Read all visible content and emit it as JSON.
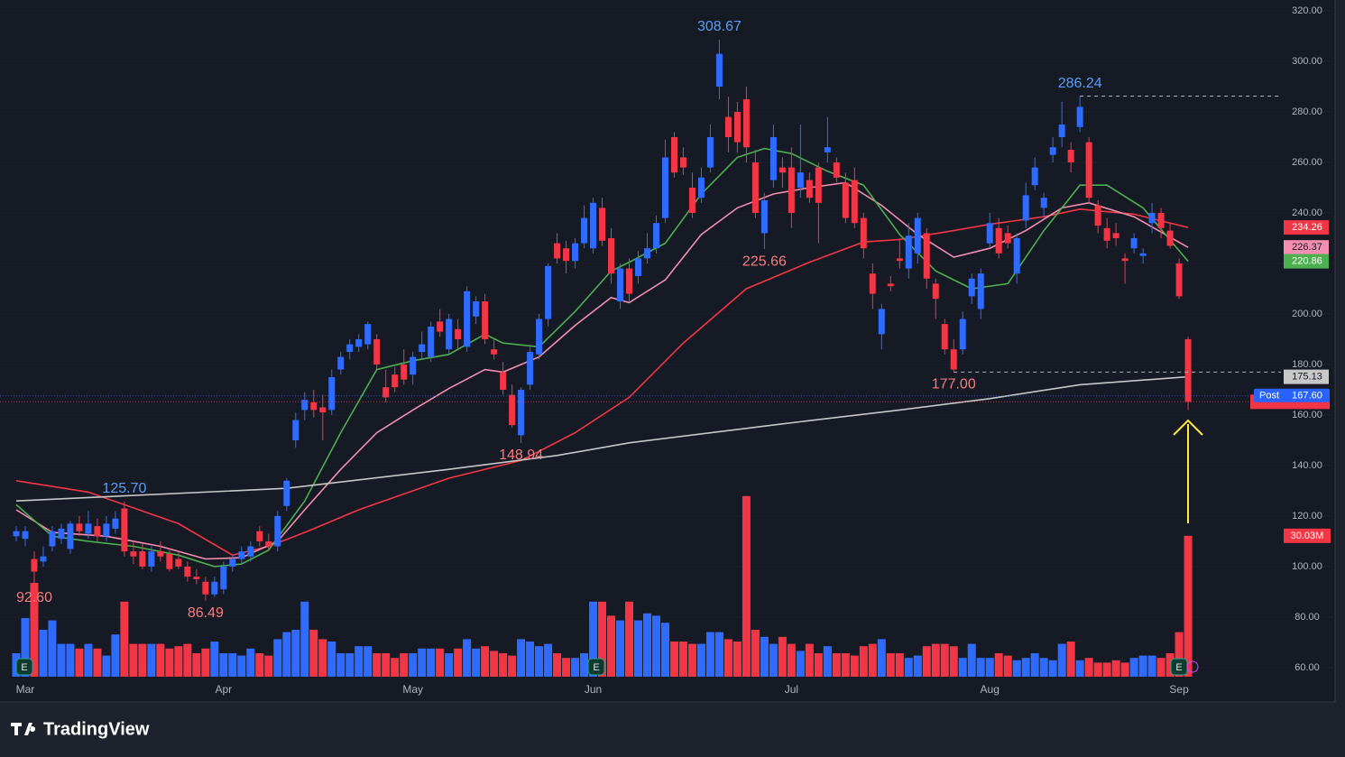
{
  "chart_data": {
    "type": "candlestick",
    "brand": "TradingView",
    "earnings_label": "E",
    "ylim": [
      46.4,
      324.3
    ],
    "xlim": [
      -1.8,
      140.3
    ],
    "grid": true,
    "up_color": "#2f6bff",
    "down_color": "#f23645",
    "yticks": [
      {
        "value": 60,
        "label": "60.00"
      },
      {
        "value": 80,
        "label": "80.00"
      },
      {
        "value": 100,
        "label": "100.00"
      },
      {
        "value": 120,
        "label": "120.00"
      },
      {
        "value": 140,
        "label": "140.00"
      },
      {
        "value": 160,
        "label": "160.00"
      },
      {
        "value": 180,
        "label": "180.00"
      },
      {
        "value": 200,
        "label": "200.00"
      },
      {
        "value": 220,
        "label": "220.00"
      },
      {
        "value": 240,
        "label": "240.00"
      },
      {
        "value": 260,
        "label": "260.00"
      },
      {
        "value": 280,
        "label": "280.00"
      },
      {
        "value": 300,
        "label": "300.00"
      },
      {
        "value": 320,
        "label": "320.00"
      }
    ],
    "categories": [
      null,
      "Mar",
      null,
      null,
      null,
      null,
      null,
      null,
      null,
      null,
      null,
      null,
      null,
      null,
      null,
      null,
      null,
      null,
      null,
      null,
      null,
      null,
      null,
      "Apr",
      null,
      null,
      null,
      null,
      null,
      null,
      null,
      null,
      null,
      null,
      null,
      null,
      null,
      null,
      null,
      null,
      null,
      null,
      null,
      null,
      "May",
      null,
      null,
      null,
      null,
      null,
      null,
      null,
      null,
      null,
      null,
      null,
      null,
      null,
      null,
      null,
      null,
      null,
      null,
      null,
      "Jun",
      null,
      null,
      null,
      null,
      null,
      null,
      null,
      null,
      null,
      null,
      null,
      null,
      null,
      null,
      null,
      null,
      null,
      null,
      null,
      null,
      null,
      "Jul",
      null,
      null,
      null,
      null,
      null,
      null,
      null,
      null,
      null,
      null,
      null,
      null,
      null,
      null,
      null,
      null,
      null,
      null,
      null,
      null,
      null,
      "Aug",
      null,
      null,
      null,
      null,
      null,
      null,
      null,
      null,
      null,
      null,
      null,
      null,
      null,
      null,
      null,
      null,
      null,
      null,
      null,
      null,
      "Sep",
      null
    ],
    "candles": [
      [
        112,
        116,
        110,
        114
      ],
      [
        111,
        116,
        108,
        114
      ],
      [
        103,
        106,
        92.6,
        98
      ],
      [
        102,
        108,
        100,
        104
      ],
      [
        108,
        116,
        106,
        114
      ],
      [
        111,
        117,
        109,
        115
      ],
      [
        107,
        118,
        105,
        117
      ],
      [
        117,
        120,
        112,
        114
      ],
      [
        113,
        122,
        111,
        117
      ],
      [
        116,
        119,
        110,
        112
      ],
      [
        112,
        120,
        110,
        117
      ],
      [
        115,
        122,
        113,
        119
      ],
      [
        123,
        125.7,
        104,
        106
      ],
      [
        106,
        110,
        101,
        104
      ],
      [
        106,
        109,
        99,
        100
      ],
      [
        100,
        108,
        98,
        106
      ],
      [
        106,
        110,
        102,
        104
      ],
      [
        105,
        107,
        98,
        99
      ],
      [
        103,
        106,
        99,
        100
      ],
      [
        100,
        102,
        94,
        96
      ],
      [
        96,
        99,
        93,
        95
      ],
      [
        94,
        96,
        86.49,
        89
      ],
      [
        89,
        96,
        88,
        94
      ],
      [
        91,
        102,
        89,
        100
      ],
      [
        100,
        105,
        98,
        103
      ],
      [
        103,
        108,
        101,
        106
      ],
      [
        104,
        110,
        102,
        108
      ],
      [
        114,
        116,
        108,
        110
      ],
      [
        110,
        113,
        106,
        108
      ],
      [
        108,
        122,
        106,
        120
      ],
      [
        124,
        135,
        122,
        134
      ],
      [
        150,
        161,
        147,
        158
      ],
      [
        162,
        169,
        158,
        166
      ],
      [
        165,
        170,
        159,
        162
      ],
      [
        163,
        168,
        150,
        161
      ],
      [
        162,
        178,
        160,
        175
      ],
      [
        178,
        185,
        176,
        183
      ],
      [
        185,
        190,
        182,
        188
      ],
      [
        187,
        192,
        185,
        190
      ],
      [
        188,
        197,
        186,
        196
      ],
      [
        190,
        192,
        178,
        180
      ],
      [
        171,
        178,
        165,
        167
      ],
      [
        176,
        179,
        169,
        171
      ],
      [
        180,
        186,
        172,
        174
      ],
      [
        176,
        185,
        172,
        183
      ],
      [
        185,
        193,
        182,
        188
      ],
      [
        183,
        197,
        181,
        195
      ],
      [
        197,
        202,
        191,
        193
      ],
      [
        186,
        200,
        184,
        198
      ],
      [
        194,
        198,
        186,
        190
      ],
      [
        187,
        211,
        185,
        209
      ],
      [
        199,
        207,
        196,
        205
      ],
      [
        205,
        208,
        188,
        190
      ],
      [
        186,
        190,
        182,
        184
      ],
      [
        177,
        181,
        168,
        170
      ],
      [
        168,
        172,
        155,
        156
      ],
      [
        152,
        171,
        148.94,
        170
      ],
      [
        172,
        187,
        170,
        185
      ],
      [
        184,
        200,
        182,
        198
      ],
      [
        198,
        220,
        195,
        219
      ],
      [
        228,
        232,
        220,
        222
      ],
      [
        226,
        229,
        216,
        221
      ],
      [
        221,
        230,
        218,
        228
      ],
      [
        228,
        243,
        226,
        238
      ],
      [
        226,
        246,
        224,
        244
      ],
      [
        242,
        246,
        227,
        229
      ],
      [
        230,
        234,
        212,
        216
      ],
      [
        205,
        220,
        202,
        218
      ],
      [
        218,
        222,
        205,
        208
      ],
      [
        215,
        225,
        212,
        222
      ],
      [
        222,
        232,
        220,
        226
      ],
      [
        226,
        239,
        224,
        236
      ],
      [
        238,
        269,
        236,
        262
      ],
      [
        270,
        272,
        254,
        256
      ],
      [
        262,
        266,
        255,
        258
      ],
      [
        250,
        256,
        238,
        240
      ],
      [
        246,
        258,
        244,
        254
      ],
      [
        258,
        275,
        256,
        270
      ],
      [
        290,
        308.67,
        285,
        303
      ],
      [
        278,
        286,
        264,
        270
      ],
      [
        280,
        284,
        264,
        268
      ],
      [
        285,
        290,
        260,
        266
      ],
      [
        260,
        265,
        238,
        240
      ],
      [
        232,
        248,
        225.66,
        245
      ],
      [
        253,
        275,
        250,
        270
      ],
      [
        258,
        262,
        250,
        256
      ],
      [
        258,
        266,
        234,
        240
      ],
      [
        250,
        275,
        246,
        256
      ],
      [
        253,
        256,
        244,
        246
      ],
      [
        258,
        260,
        228,
        244
      ],
      [
        264,
        278,
        260,
        266
      ],
      [
        260,
        262,
        252,
        254
      ],
      [
        252,
        256,
        236,
        238
      ],
      [
        253,
        258,
        234,
        236
      ],
      [
        238,
        240,
        222,
        226
      ],
      [
        216,
        220,
        202,
        208
      ],
      [
        192,
        204,
        186,
        202
      ],
      [
        212,
        215,
        209,
        211
      ],
      [
        222,
        230,
        218,
        221
      ],
      [
        218,
        236,
        214,
        231
      ],
      [
        224,
        240,
        220,
        238
      ],
      [
        232,
        234,
        210,
        214
      ],
      [
        212,
        214,
        198,
        206
      ],
      [
        196,
        198,
        184,
        186
      ],
      [
        186,
        190,
        177,
        178
      ],
      [
        186,
        201,
        184,
        198
      ],
      [
        207,
        216,
        204,
        214
      ],
      [
        202,
        218,
        198,
        216
      ],
      [
        228,
        240,
        226,
        236
      ],
      [
        234,
        238,
        222,
        224
      ],
      [
        232,
        235,
        226,
        228
      ],
      [
        216,
        232,
        212,
        230
      ],
      [
        237,
        252,
        234,
        247
      ],
      [
        251,
        262,
        249,
        258
      ],
      [
        242,
        248,
        238,
        246
      ],
      [
        263,
        270,
        260,
        266
      ],
      [
        270,
        284,
        266,
        275
      ],
      [
        265,
        268,
        256,
        260
      ],
      [
        274,
        286.24,
        272,
        282
      ],
      [
        268,
        270,
        244,
        246
      ],
      [
        243,
        245,
        232,
        235
      ],
      [
        234,
        238,
        226,
        229
      ],
      [
        232,
        236,
        227,
        230
      ],
      [
        222,
        224,
        212,
        221
      ],
      [
        226,
        232,
        224,
        230
      ],
      [
        223,
        226,
        220,
        224
      ],
      [
        236,
        244,
        232,
        240
      ],
      [
        240,
        242,
        230,
        234
      ],
      [
        233,
        236,
        226,
        227
      ],
      [
        220,
        222,
        206,
        207
      ],
      [
        190,
        191,
        162,
        165.22
      ]
    ],
    "volume": {
      "values": [
        5,
        12.5,
        20,
        10,
        12,
        7,
        7,
        6,
        7,
        6,
        4.5,
        9,
        16,
        7,
        7,
        7,
        7,
        6,
        6.5,
        7,
        5,
        6,
        7.5,
        5,
        5,
        4.5,
        6,
        5,
        4.5,
        8,
        9.5,
        10,
        16,
        10,
        8,
        7.5,
        5,
        5,
        6.5,
        6.5,
        5,
        5,
        4,
        5,
        5,
        6,
        6,
        6,
        5,
        6,
        8,
        6,
        6.5,
        5.5,
        5,
        4.5,
        8,
        7.5,
        6.5,
        7,
        5,
        4,
        4,
        5,
        16,
        16,
        13,
        12,
        16,
        12,
        13.5,
        13,
        11.5,
        7.5,
        7.5,
        7,
        7,
        9.5,
        9.5,
        8,
        7.5,
        38.5,
        10,
        8.5,
        7,
        8.5,
        7,
        5.5,
        7,
        5,
        6.5,
        5,
        5,
        4.5,
        6.5,
        7,
        8,
        5,
        5,
        4,
        4.5,
        6.5,
        7,
        7,
        6.5,
        4,
        7,
        4,
        4,
        5,
        4.5,
        3.5,
        4,
        5,
        4,
        3.5,
        7,
        7.5,
        3.5,
        4,
        3,
        3,
        3.5,
        3,
        4,
        4.5,
        4.5,
        4,
        5,
        9.5,
        30.03
      ],
      "value_labels": {
        "130": "30.03M"
      },
      "color": "#f23645"
    },
    "series": [
      {
        "color": "#f23645",
        "x": [
          0,
          8,
          18,
          24,
          28,
          32,
          38,
          48,
          56,
          62,
          68,
          74,
          81,
          88,
          94,
          98,
          104,
          108,
          114,
          118,
          124,
          130
        ],
        "values": [
          134,
          129.5,
          117,
          104.5,
          108,
          113.5,
          122.5,
          135,
          142,
          153,
          167,
          188.5,
          210,
          220.5,
          228.5,
          229.5,
          233,
          235.5,
          238.5,
          241.5,
          239.5,
          234.26
        ]
      },
      {
        "color": "#f48fb1",
        "x": [
          0,
          4,
          10,
          16,
          21,
          25,
          29,
          32,
          36,
          40,
          44,
          48,
          52,
          54,
          58,
          62,
          66,
          68,
          72,
          76,
          80,
          84,
          88,
          92,
          96,
          100,
          104,
          108,
          112,
          116,
          119,
          124,
          130
        ],
        "values": [
          122.5,
          113.5,
          112,
          108,
          103,
          103.5,
          110,
          122.5,
          138.5,
          153,
          162,
          170.5,
          178,
          177,
          183,
          195.5,
          206.5,
          204.5,
          213.5,
          231.5,
          242,
          247.5,
          250,
          252,
          243,
          231.5,
          222.5,
          226,
          233,
          242,
          244,
          238.5,
          226.37
        ]
      },
      {
        "color": "#4caf50",
        "x": [
          0,
          4,
          8,
          13,
          18,
          22,
          25,
          28,
          32,
          36,
          40,
          44,
          48,
          52,
          54,
          58,
          62,
          66,
          68,
          72,
          76,
          80,
          83,
          86,
          90,
          94,
          98,
          102,
          106,
          110,
          114,
          118,
          121,
          125,
          130
        ],
        "values": [
          124.5,
          112,
          110,
          108,
          104.5,
          100,
          101,
          106.5,
          126,
          153,
          178,
          181.5,
          184,
          192,
          188.5,
          187,
          201,
          217,
          220.5,
          228,
          247.5,
          262,
          265.5,
          263.5,
          256.5,
          251,
          231.5,
          217,
          210,
          212,
          233,
          251,
          251,
          242,
          220.86
        ]
      },
      {
        "color": "#c8c8c8",
        "x": [
          0,
          30,
          48,
          60,
          68,
          85,
          98,
          108,
          118,
          130
        ],
        "values": [
          126,
          131,
          138.5,
          144,
          149,
          156.5,
          162,
          166.5,
          172,
          175.13
        ]
      }
    ],
    "annotations": [
      {
        "label": "308.67",
        "value": 308.67,
        "kind": "high"
      },
      {
        "label": "286.24",
        "value": 286.24,
        "kind": "high",
        "dashed": true
      },
      {
        "label": "125.70",
        "value": 125.7,
        "kind": "high"
      },
      {
        "label": "225.66",
        "value": 225.66,
        "kind": "low"
      },
      {
        "label": "148.94",
        "value": 148.94,
        "kind": "low"
      },
      {
        "label": "177.00",
        "value": 177,
        "kind": "low",
        "dashed": true
      },
      {
        "label": "92.60",
        "value": 92.6,
        "kind": "low"
      },
      {
        "label": "86.49",
        "value": 86.49,
        "kind": "low"
      }
    ],
    "post_price": {
      "text": "Post",
      "value": 167.6,
      "label": "167.60"
    }
  }
}
